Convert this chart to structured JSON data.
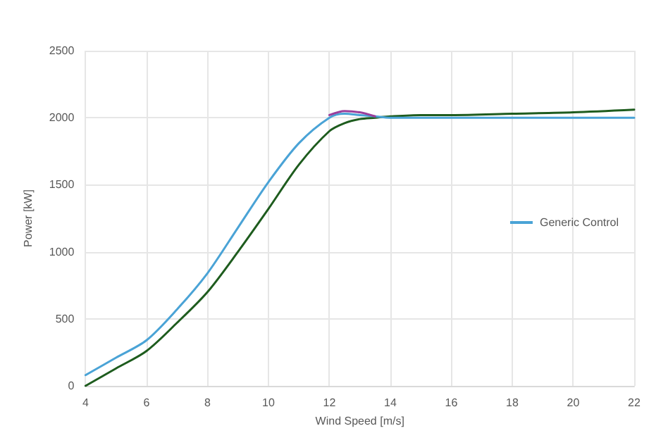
{
  "chart_data": {
    "type": "line",
    "xlabel": "Wind Speed [m/s]",
    "ylabel": "Power [kW]",
    "xlim": [
      4,
      22
    ],
    "xticks": [
      4,
      6,
      8,
      10,
      12,
      14,
      16,
      18,
      20,
      22
    ],
    "ylim": [
      0,
      2500
    ],
    "yticks": [
      0,
      500,
      1000,
      1500,
      2000,
      2500
    ],
    "grid": true,
    "legend": "right",
    "marker": "none",
    "line_style": "solid",
    "x": [
      4,
      5,
      6,
      7,
      8,
      9,
      10,
      11,
      12,
      12.5,
      13,
      13.5,
      14,
      15,
      16,
      18,
      20,
      22
    ],
    "series": [
      {
        "color": "#1e5c1e",
        "values": [
          0,
          130,
          260,
          470,
          700,
          1000,
          1320,
          1650,
          1900,
          1960,
          1990,
          2000,
          2010,
          2020,
          2020,
          2030,
          2040,
          2060
        ]
      },
      {
        "color": "#4aa3d6",
        "name": "Generic Control",
        "values": [
          80,
          210,
          340,
          570,
          840,
          1180,
          1520,
          1810,
          2000,
          2030,
          2020,
          2010,
          2000,
          2000,
          2000,
          2000,
          2000,
          2000
        ]
      },
      {
        "color": "#9b3f9b",
        "values": [
          null,
          null,
          null,
          null,
          null,
          null,
          null,
          null,
          2020,
          2050,
          2040,
          2010,
          null,
          null,
          null,
          null,
          null,
          null
        ]
      }
    ]
  }
}
